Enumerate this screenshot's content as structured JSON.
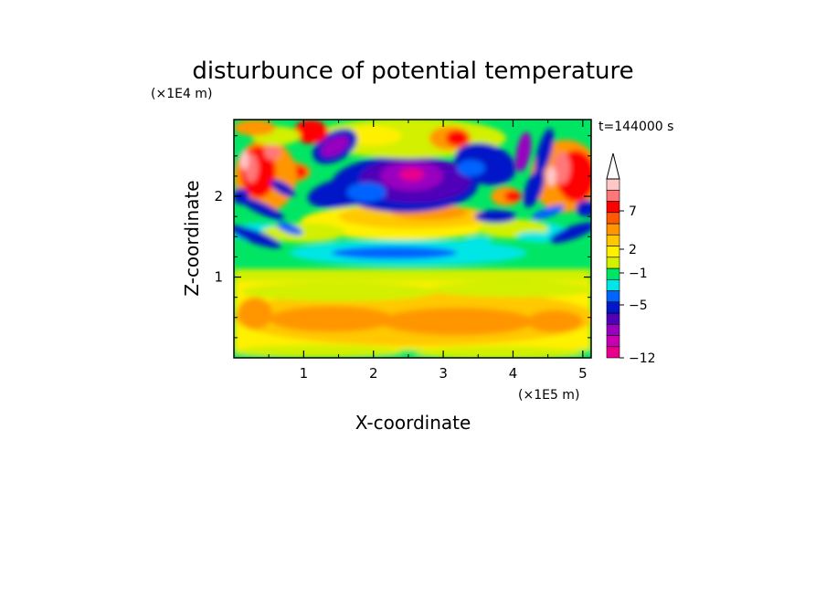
{
  "chart_data": {
    "type": "heatmap",
    "title": "disturbunce of potential temperature",
    "xlabel": "X-coordinate",
    "ylabel": "Z-coordinate",
    "x_unit": "(×1E5 m)",
    "y_unit": "(×1E4 m)",
    "time_label": "t=144000 s",
    "xlim": [
      0,
      5.12
    ],
    "ylim": [
      0,
      2.95
    ],
    "x_ticks": [
      "1",
      "2",
      "3",
      "4",
      "5"
    ],
    "y_ticks": [
      "1",
      "2"
    ],
    "colorbar": {
      "labels": [
        "7",
        "2",
        "−1",
        "−5",
        "−12"
      ],
      "label_values": [
        7,
        2,
        -1,
        -5,
        -12
      ],
      "colors": [
        "#e8008c",
        "#c800b4",
        "#9a00c0",
        "#5000b8",
        "#0018c8",
        "#0064ff",
        "#00e6e6",
        "#00e664",
        "#d2f000",
        "#fff000",
        "#ffc800",
        "#ff9600",
        "#ff5a00",
        "#ff0000",
        "#ff7878",
        "#ffc8c8"
      ],
      "extend": "max"
    },
    "features": [
      {
        "name": "lower warm band",
        "x_range": [
          0,
          5.12
        ],
        "z_range": [
          0.2,
          0.75
        ],
        "value": 2
      },
      {
        "name": "mid cool band",
        "x_range": [
          1.0,
          4.0
        ],
        "z_range": [
          1.1,
          1.5
        ],
        "value": -1
      },
      {
        "name": "upper cold core",
        "x_range": [
          1.8,
          3.2
        ],
        "z_range": [
          1.85,
          2.45
        ],
        "value": -12
      },
      {
        "name": "upper-left wave train",
        "x_range": [
          0,
          1.8
        ],
        "z_range": [
          1.4,
          2.95
        ],
        "value": 7
      },
      {
        "name": "upper-right wave train",
        "x_range": [
          3.5,
          5.12
        ],
        "z_range": [
          1.4,
          2.95
        ],
        "value": 7
      }
    ]
  }
}
